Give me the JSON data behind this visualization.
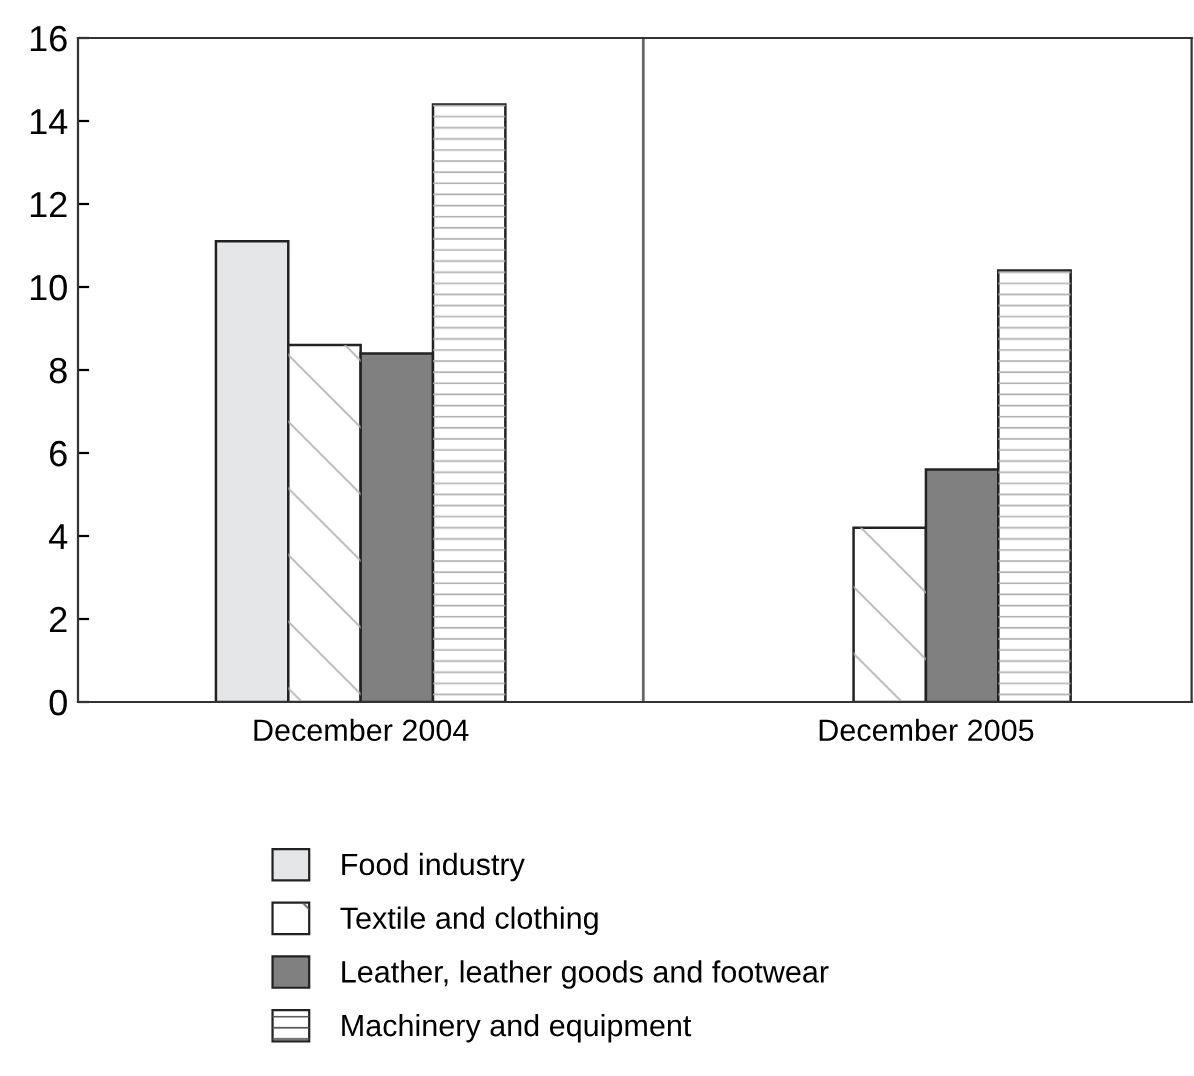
{
  "chart_data": {
    "type": "bar",
    "categories": [
      "December 2004",
      "December 2005"
    ],
    "series": [
      {
        "name": "Food industry",
        "color": "#e5e6e8",
        "values": [
          11.1,
          null
        ]
      },
      {
        "name": "Textile and clothing",
        "color": "#ffffff",
        "values": [
          8.6,
          4.2
        ]
      },
      {
        "name": "Leather, leather goods and footwear",
        "color": "#808080",
        "values": [
          8.4,
          5.6
        ]
      },
      {
        "name": "Machinery and equipment",
        "color": "#ffffff",
        "values": [
          14.4,
          10.4
        ]
      }
    ],
    "ylim": [
      0,
      16
    ],
    "yticks": [
      0,
      2,
      4,
      6,
      8,
      10,
      12,
      14,
      16
    ],
    "legend": "bottom",
    "grid": false
  }
}
